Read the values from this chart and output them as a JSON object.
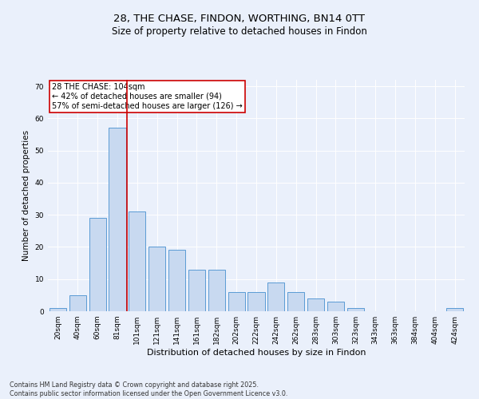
{
  "title1": "28, THE CHASE, FINDON, WORTHING, BN14 0TT",
  "title2": "Size of property relative to detached houses in Findon",
  "xlabel": "Distribution of detached houses by size in Findon",
  "ylabel": "Number of detached properties",
  "categories": [
    "20sqm",
    "40sqm",
    "60sqm",
    "81sqm",
    "101sqm",
    "121sqm",
    "141sqm",
    "161sqm",
    "182sqm",
    "202sqm",
    "222sqm",
    "242sqm",
    "262sqm",
    "283sqm",
    "303sqm",
    "323sqm",
    "343sqm",
    "363sqm",
    "384sqm",
    "404sqm",
    "424sqm"
  ],
  "values": [
    1,
    5,
    29,
    57,
    31,
    20,
    19,
    13,
    13,
    6,
    6,
    9,
    6,
    4,
    3,
    1,
    0,
    0,
    0,
    0,
    1
  ],
  "bar_color": "#c8d9f0",
  "bar_edge_color": "#5b9bd5",
  "vline_color": "#cc0000",
  "vline_pos": 3.5,
  "annotation_title": "28 THE CHASE: 104sqm",
  "annotation_line2": "← 42% of detached houses are smaller (94)",
  "annotation_line3": "57% of semi-detached houses are larger (126) →",
  "annotation_box_color": "#ffffff",
  "annotation_box_edge_color": "#cc0000",
  "ylim": [
    0,
    72
  ],
  "yticks": [
    0,
    10,
    20,
    30,
    40,
    50,
    60,
    70
  ],
  "background_color": "#eaf0fb",
  "plot_background_color": "#eaf0fb",
  "footer_line1": "Contains HM Land Registry data © Crown copyright and database right 2025.",
  "footer_line2": "Contains public sector information licensed under the Open Government Licence v3.0.",
  "title1_fontsize": 9.5,
  "title2_fontsize": 8.5,
  "xlabel_fontsize": 8,
  "ylabel_fontsize": 7.5,
  "tick_fontsize": 6.5,
  "annotation_fontsize": 7,
  "footer_fontsize": 5.8
}
